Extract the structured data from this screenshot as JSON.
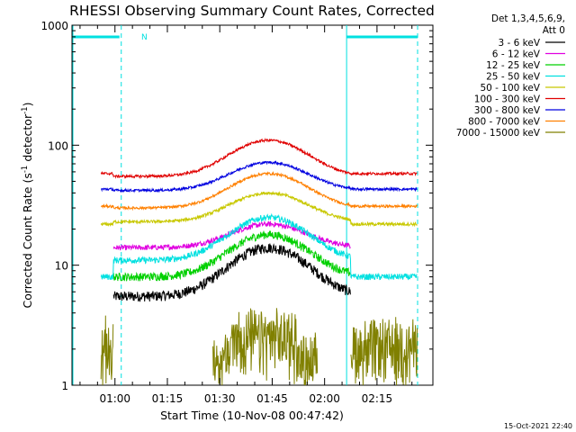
{
  "chart_data": {
    "type": "line",
    "title": "RHESSI Observing Summary Count Rates, Corrected",
    "xlabel": "Start Time (10-Nov-08 00:47:42)",
    "ylabel_main": "Corrected Count Rate (s",
    "ylabel_sup1": "-1",
    "ylabel_mid": " detector",
    "ylabel_sup2": "-1",
    "ylabel_end": ")",
    "ylabel": "Corrected Count Rate (s-1 detector-1)",
    "y_scale": "log",
    "ylim": [
      1,
      1000
    ],
    "xlim_minutes": [
      47.7,
      151
    ],
    "x_ticks": [
      {
        "t": 60,
        "label": "01:00"
      },
      {
        "t": 75,
        "label": "01:15"
      },
      {
        "t": 90,
        "label": "01:30"
      },
      {
        "t": 105,
        "label": "01:45"
      },
      {
        "t": 120,
        "label": "02:00"
      },
      {
        "t": 135,
        "label": "02:15"
      }
    ],
    "y_ticks": [
      {
        "v": 1,
        "label": "1"
      },
      {
        "v": 10,
        "label": "10"
      },
      {
        "v": 100,
        "label": "100"
      },
      {
        "v": 1000,
        "label": "1000"
      }
    ],
    "legend_header": [
      "Det 1,3,4,5,6,9,",
      "Att 0"
    ],
    "legend_position": "right",
    "timestamp": "15-Oct-2021 22:40",
    "night_marker": "N",
    "eclipse": {
      "night_start": 61.8,
      "day_start": 126.3
    },
    "series": [
      {
        "name": "3 - 6 keV",
        "color": "#000000",
        "base": 5.5,
        "peak": 14,
        "early": null,
        "noise": 0.1
      },
      {
        "name": "6 - 12 keV",
        "color": "#e000e0",
        "base": 14,
        "peak": 22,
        "early": null,
        "noise": 0.05
      },
      {
        "name": "12 - 25 keV",
        "color": "#00d000",
        "base": 8,
        "peak": 18,
        "early": null,
        "noise": 0.08
      },
      {
        "name": "25 - 50 keV",
        "color": "#00e0e0",
        "base": 11,
        "peak": 25,
        "early": 8,
        "noise": 0.06
      },
      {
        "name": "50 - 100 keV",
        "color": "#c8c800",
        "base": 23,
        "peak": 40,
        "early": 22,
        "noise": 0.03
      },
      {
        "name": "100 - 300 keV",
        "color": "#e00000",
        "base": 55,
        "peak": 110,
        "early": 58,
        "noise": 0.025
      },
      {
        "name": "300 - 800 keV",
        "color": "#0000e0",
        "base": 42,
        "peak": 72,
        "early": 43,
        "noise": 0.025
      },
      {
        "name": "800 - 7000 keV",
        "color": "#ff8000",
        "base": 30,
        "peak": 58,
        "early": 31,
        "noise": 0.025
      },
      {
        "name": "7000 - 15000 keV",
        "color": "#808000",
        "base": 1,
        "peak": 3.5,
        "early": 2.5,
        "noise": 0.2
      }
    ],
    "grid": false
  }
}
